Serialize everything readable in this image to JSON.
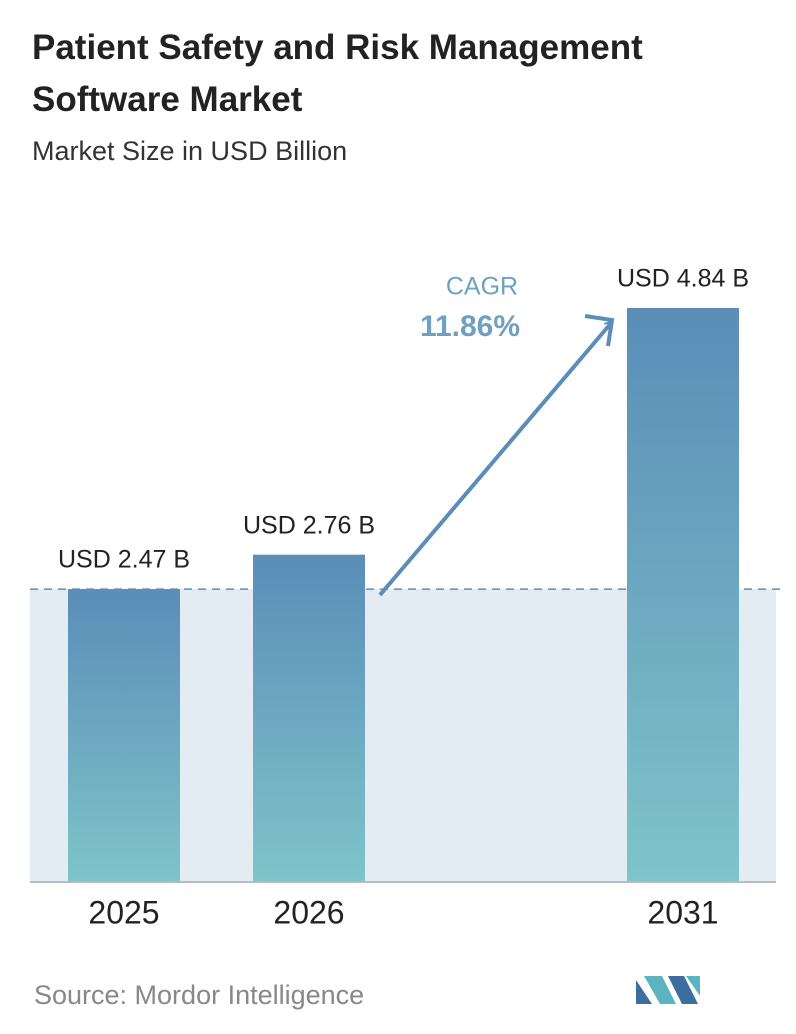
{
  "chart_data": {
    "type": "bar",
    "title": "Patient Safety and Risk Management Software Market",
    "subtitle": "Market Size in USD Billion",
    "categories": [
      "2025",
      "2026",
      "2031"
    ],
    "values": [
      2.47,
      2.76,
      4.84
    ],
    "value_labels": [
      "USD 2.47 B",
      "USD 2.76 B",
      "USD 4.84 B"
    ],
    "color": [
      "#5b8db8",
      "#7ec4c9"
    ],
    "annotation": {
      "label": "CAGR",
      "value": "11.86%"
    },
    "source": "Source:  Mordor Intelligence"
  }
}
